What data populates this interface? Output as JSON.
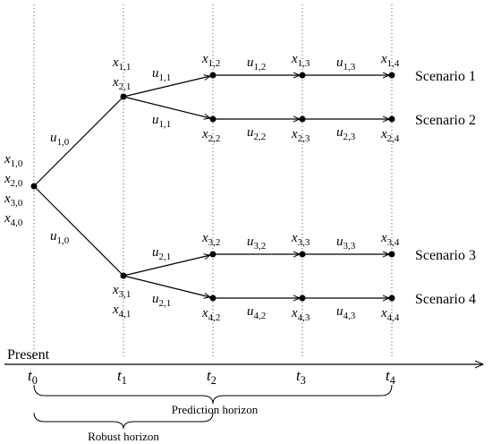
{
  "present": "Present",
  "time_labels": [
    {
      "var": "t",
      "sub": "0"
    },
    {
      "var": "t",
      "sub": "1"
    },
    {
      "var": "t",
      "sub": "2"
    },
    {
      "var": "t",
      "sub": "3"
    },
    {
      "var": "t",
      "sub": "4"
    }
  ],
  "state_labels": [
    {
      "var": "x",
      "sub": "1,0"
    },
    {
      "var": "x",
      "sub": "2,0"
    },
    {
      "var": "x",
      "sub": "3,0"
    },
    {
      "var": "x",
      "sub": "4,0"
    },
    {
      "var": "x",
      "sub": "1,1"
    },
    {
      "var": "x",
      "sub": "2,1"
    },
    {
      "var": "x",
      "sub": "3,1"
    },
    {
      "var": "x",
      "sub": "4,1"
    },
    {
      "var": "x",
      "sub": "1,2"
    },
    {
      "var": "x",
      "sub": "2,2"
    },
    {
      "var": "x",
      "sub": "3,2"
    },
    {
      "var": "x",
      "sub": "4,2"
    },
    {
      "var": "x",
      "sub": "1,3"
    },
    {
      "var": "x",
      "sub": "2,3"
    },
    {
      "var": "x",
      "sub": "3,3"
    },
    {
      "var": "x",
      "sub": "4,3"
    },
    {
      "var": "x",
      "sub": "1,4"
    },
    {
      "var": "x",
      "sub": "2,4"
    },
    {
      "var": "x",
      "sub": "3,4"
    },
    {
      "var": "x",
      "sub": "4,4"
    }
  ],
  "input_labels": [
    {
      "var": "u",
      "sub": "1,0"
    },
    {
      "var": "u",
      "sub": "1,0"
    },
    {
      "var": "u",
      "sub": "1,1"
    },
    {
      "var": "u",
      "sub": "1,1"
    },
    {
      "var": "u",
      "sub": "2,1"
    },
    {
      "var": "u",
      "sub": "2,1"
    },
    {
      "var": "u",
      "sub": "1,2"
    },
    {
      "var": "u",
      "sub": "2,2"
    },
    {
      "var": "u",
      "sub": "3,2"
    },
    {
      "var": "u",
      "sub": "4,2"
    },
    {
      "var": "u",
      "sub": "1,3"
    },
    {
      "var": "u",
      "sub": "2,3"
    },
    {
      "var": "u",
      "sub": "3,3"
    },
    {
      "var": "u",
      "sub": "4,3"
    }
  ],
  "scenarios": [
    "Scenario 1",
    "Scenario 2",
    "Scenario 3",
    "Scenario 4"
  ],
  "horizons": {
    "prediction": "Prediction horizon",
    "robust": "Robust horizon"
  }
}
